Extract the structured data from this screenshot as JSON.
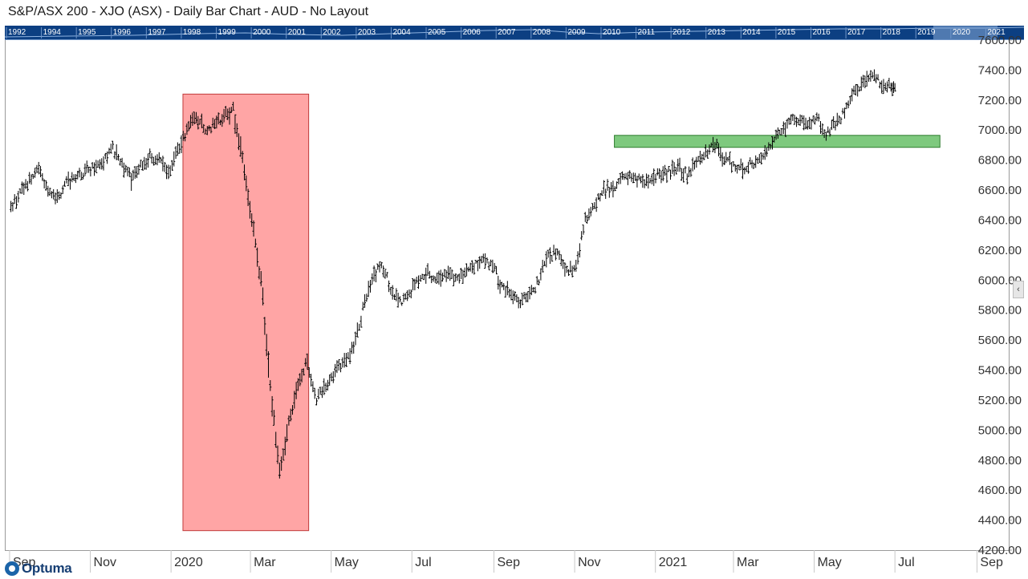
{
  "window": {
    "title": "S&P/ASX 200 - XJO (ASX) - Daily Bar Chart - AUD - No Layout"
  },
  "year_nav": {
    "years": [
      "1992",
      "1994",
      "1995",
      "1996",
      "1997",
      "1998",
      "1999",
      "2000",
      "2001",
      "2002",
      "2003",
      "2004",
      "2005",
      "2006",
      "2007",
      "2008",
      "2009",
      "2010",
      "2011",
      "2012",
      "2013",
      "2014",
      "2015",
      "2016",
      "2017",
      "2018",
      "2019",
      "2020",
      "2021"
    ]
  },
  "logo": {
    "text": "Optuma"
  },
  "icons": {
    "logo_icon": "optuma-logo-icon",
    "scroll_icon": "chevron-left-icon"
  },
  "colors": {
    "highlight_red_fill": "#ffa5a5",
    "highlight_red_border": "#c03a3a",
    "highlight_green_fill": "#7ec97e",
    "highlight_green_border": "#2f7d2f",
    "bar_color": "#000000",
    "nav_bg": "#0c3f82"
  },
  "chart_data": {
    "type": "bar",
    "subtype": "ohlc-daily",
    "title": "S&P/ASX 200 - XJO (ASX) - Daily Bar Chart - AUD - No Layout",
    "currency": "AUD",
    "ylim": [
      4200,
      7600
    ],
    "y_ticks": [
      "7600.00",
      "7400.00",
      "7200.00",
      "7000.00",
      "6800.00",
      "6600.00",
      "6400.00",
      "6200.00",
      "6000.00",
      "5800.00",
      "5600.00",
      "5400.00",
      "5200.00",
      "5000.00",
      "4800.00",
      "4600.00",
      "4400.00",
      "4200.00"
    ],
    "x_ticks": [
      "Sep",
      "Nov",
      "2020",
      "Mar",
      "May",
      "Jul",
      "Sep",
      "Nov",
      "2021",
      "Mar",
      "May",
      "Jul",
      "Sep"
    ],
    "xlim": [
      "2019-08-29",
      "2021-09-25"
    ],
    "x_tick_dates": [
      "2019-09-01",
      "2019-11-01",
      "2020-01-01",
      "2020-03-01",
      "2020-05-01",
      "2020-07-01",
      "2020-09-01",
      "2020-11-01",
      "2021-01-01",
      "2021-03-01",
      "2021-05-01",
      "2021-07-01",
      "2021-09-01"
    ],
    "grid": false,
    "series": [
      {
        "values": [
          [
            "2019-09-02",
            6480
          ],
          [
            "2019-09-09",
            6580
          ],
          [
            "2019-09-16",
            6660
          ],
          [
            "2019-09-23",
            6730
          ],
          [
            "2019-09-30",
            6620
          ],
          [
            "2019-10-07",
            6540
          ],
          [
            "2019-10-14",
            6640
          ],
          [
            "2019-10-21",
            6700
          ],
          [
            "2019-10-28",
            6720
          ],
          [
            "2019-11-04",
            6760
          ],
          [
            "2019-11-11",
            6800
          ],
          [
            "2019-11-18",
            6880
          ],
          [
            "2019-11-25",
            6760
          ],
          [
            "2019-12-02",
            6680
          ],
          [
            "2019-12-09",
            6760
          ],
          [
            "2019-12-16",
            6820
          ],
          [
            "2019-12-23",
            6800
          ],
          [
            "2019-12-30",
            6720
          ],
          [
            "2020-01-06",
            6860
          ],
          [
            "2020-01-13",
            7000
          ],
          [
            "2020-01-20",
            7090
          ],
          [
            "2020-01-27",
            7000
          ],
          [
            "2020-02-03",
            7050
          ],
          [
            "2020-02-10",
            7080
          ],
          [
            "2020-02-17",
            7140
          ],
          [
            "2020-02-24",
            6800
          ],
          [
            "2020-03-02",
            6400
          ],
          [
            "2020-03-09",
            6000
          ],
          [
            "2020-03-16",
            5300
          ],
          [
            "2020-03-23",
            4700
          ],
          [
            "2020-03-30",
            5050
          ],
          [
            "2020-04-06",
            5300
          ],
          [
            "2020-04-13",
            5450
          ],
          [
            "2020-04-20",
            5200
          ],
          [
            "2020-04-27",
            5300
          ],
          [
            "2020-05-04",
            5400
          ],
          [
            "2020-05-11",
            5450
          ],
          [
            "2020-05-18",
            5550
          ],
          [
            "2020-05-25",
            5800
          ],
          [
            "2020-06-01",
            6000
          ],
          [
            "2020-06-08",
            6100
          ],
          [
            "2020-06-15",
            5950
          ],
          [
            "2020-06-22",
            5850
          ],
          [
            "2020-06-29",
            5900
          ],
          [
            "2020-07-06",
            6000
          ],
          [
            "2020-07-13",
            6050
          ],
          [
            "2020-07-20",
            6000
          ],
          [
            "2020-07-27",
            6050
          ],
          [
            "2020-08-03",
            6000
          ],
          [
            "2020-08-10",
            6050
          ],
          [
            "2020-08-17",
            6100
          ],
          [
            "2020-08-24",
            6130
          ],
          [
            "2020-08-31",
            6100
          ],
          [
            "2020-09-07",
            5950
          ],
          [
            "2020-09-14",
            5900
          ],
          [
            "2020-09-21",
            5850
          ],
          [
            "2020-09-28",
            5900
          ],
          [
            "2020-10-05",
            6000
          ],
          [
            "2020-10-12",
            6150
          ],
          [
            "2020-10-19",
            6200
          ],
          [
            "2020-10-26",
            6050
          ],
          [
            "2020-11-02",
            6100
          ],
          [
            "2020-11-09",
            6400
          ],
          [
            "2020-11-16",
            6500
          ],
          [
            "2020-11-23",
            6600
          ],
          [
            "2020-11-30",
            6620
          ],
          [
            "2020-12-07",
            6680
          ],
          [
            "2020-12-14",
            6690
          ],
          [
            "2020-12-21",
            6660
          ],
          [
            "2020-12-28",
            6680
          ],
          [
            "2021-01-04",
            6700
          ],
          [
            "2021-01-11",
            6720
          ],
          [
            "2021-01-18",
            6760
          ],
          [
            "2021-01-25",
            6700
          ],
          [
            "2021-02-01",
            6800
          ],
          [
            "2021-02-08",
            6850
          ],
          [
            "2021-02-15",
            6900
          ],
          [
            "2021-02-22",
            6800
          ],
          [
            "2021-03-01",
            6760
          ],
          [
            "2021-03-08",
            6740
          ],
          [
            "2021-03-15",
            6780
          ],
          [
            "2021-03-22",
            6800
          ],
          [
            "2021-03-29",
            6900
          ],
          [
            "2021-04-05",
            6990
          ],
          [
            "2021-04-12",
            7050
          ],
          [
            "2021-04-19",
            7070
          ],
          [
            "2021-04-26",
            7050
          ],
          [
            "2021-05-03",
            7080
          ],
          [
            "2021-05-10",
            6980
          ],
          [
            "2021-05-17",
            7050
          ],
          [
            "2021-05-24",
            7120
          ],
          [
            "2021-05-31",
            7250
          ],
          [
            "2021-06-07",
            7320
          ],
          [
            "2021-06-14",
            7380
          ],
          [
            "2021-06-21",
            7300
          ],
          [
            "2021-06-28",
            7290
          ]
        ]
      }
    ],
    "highlights": [
      {
        "type": "rectangle",
        "x": [
          "2020-01-10",
          "2020-04-14"
        ],
        "y": [
          4330,
          7240
        ],
        "color": "red"
      },
      {
        "type": "rectangle",
        "x": [
          "2020-12-01",
          "2021-08-04"
        ],
        "y": [
          6885,
          6965
        ],
        "color": "green"
      }
    ]
  }
}
